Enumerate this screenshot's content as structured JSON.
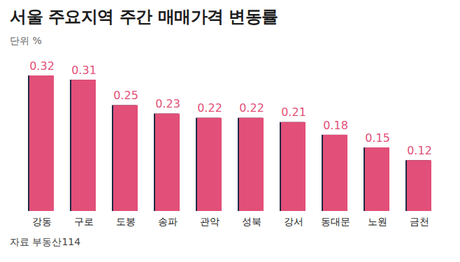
{
  "chart_data": {
    "type": "bar",
    "title": "서울 주요지역 주간 매매가격 변동률",
    "subtitle": "단위 %",
    "annotations": [
      "자료 부동산114"
    ],
    "categories": [
      "강동",
      "구로",
      "도봉",
      "송파",
      "관악",
      "성북",
      "강서",
      "동대문",
      "노원",
      "금천"
    ],
    "values": [
      0.32,
      0.31,
      0.25,
      0.23,
      0.22,
      0.22,
      0.21,
      0.18,
      0.15,
      0.12
    ],
    "color": "#e24f78",
    "ylim": [
      0,
      0.32
    ],
    "data_labels": true,
    "tick_labels": "x",
    "grid": false
  }
}
